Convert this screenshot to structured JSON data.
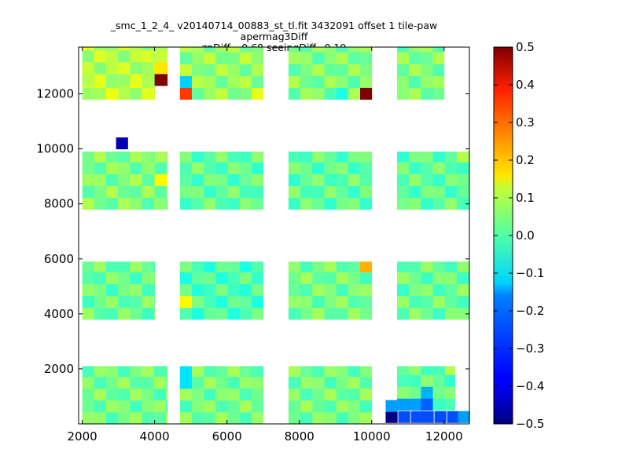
{
  "chart_data": {
    "type": "heatmap",
    "title": "_smc_1_2_4_ v20140714_00883_st_tl.fit 3432091 offset 1 tile-paw apermag3Diff",
    "subtitle": "zpDiff= 0.68 seeingDiff=0.19",
    "xlabel": "",
    "ylabel": "",
    "xlim": [
      1900,
      12700
    ],
    "ylim": [
      0,
      13700
    ],
    "x_ticks": [
      "2000",
      "4000",
      "6000",
      "8000",
      "10000",
      "12000"
    ],
    "y_ticks": [
      "2000",
      "4000",
      "6000",
      "8000",
      "10000",
      "12000"
    ],
    "colorbar": {
      "colormap": "jet",
      "range": [
        -0.5,
        0.5
      ],
      "ticks": [
        "0.5",
        "0.4",
        "0.3",
        "0.2",
        "0.1",
        "0.0",
        "−0.1",
        "−0.2",
        "−0.3",
        "−0.4",
        "−0.5"
      ]
    },
    "cell_size": [
      330,
      430
    ],
    "grid": false,
    "blocks": [
      {
        "x0": 2000,
        "x1": 4000,
        "y0": 12300,
        "y1": 13700,
        "base": 0.05
      },
      {
        "x0": 4000,
        "x1": 4350,
        "y0": 12300,
        "y1": 13700,
        "base": 0.05
      },
      {
        "x0": 4700,
        "x1": 7000,
        "y0": 11800,
        "y1": 13700,
        "base": 0.02
      },
      {
        "x0": 2000,
        "x1": 4000,
        "y0": 11800,
        "y1": 12300,
        "base": 0.06
      },
      {
        "x0": 7700,
        "x1": 10000,
        "y0": 11800,
        "y1": 13700,
        "base": 0.0
      },
      {
        "x0": 10700,
        "x1": 12000,
        "y0": 11800,
        "y1": 13700,
        "base": 0.0
      },
      {
        "x0": 2000,
        "x1": 4000,
        "y0": 7800,
        "y1": 9900,
        "base": 0.0
      },
      {
        "x0": 4000,
        "x1": 4350,
        "y0": 7800,
        "y1": 9900,
        "base": 0.0
      },
      {
        "x0": 4700,
        "x1": 7000,
        "y0": 7800,
        "y1": 9900,
        "base": -0.03
      },
      {
        "x0": 7700,
        "x1": 10000,
        "y0": 7800,
        "y1": 9900,
        "base": -0.03
      },
      {
        "x0": 10700,
        "x1": 12700,
        "y0": 7800,
        "y1": 9900,
        "base": -0.03
      },
      {
        "x0": 2000,
        "x1": 4000,
        "y0": 3800,
        "y1": 5900,
        "base": -0.02
      },
      {
        "x0": 4700,
        "x1": 7000,
        "y0": 3800,
        "y1": 5900,
        "base": -0.05
      },
      {
        "x0": 7700,
        "x1": 10000,
        "y0": 3800,
        "y1": 5900,
        "base": -0.01
      },
      {
        "x0": 10700,
        "x1": 12700,
        "y0": 3800,
        "y1": 5900,
        "base": -0.02
      },
      {
        "x0": 2000,
        "x1": 4350,
        "y0": 0,
        "y1": 2100,
        "base": -0.01
      },
      {
        "x0": 4700,
        "x1": 7000,
        "y0": 0,
        "y1": 2100,
        "base": -0.01
      },
      {
        "x0": 7700,
        "x1": 10000,
        "y0": 0,
        "y1": 2100,
        "base": -0.01
      },
      {
        "x0": 10700,
        "x1": 12300,
        "y0": 500,
        "y1": 2100,
        "base": -0.03
      }
    ],
    "notable_cells": [
      {
        "x": 3100,
        "y": 10200,
        "value": -0.45
      },
      {
        "x": 4200,
        "y": 12400,
        "value": 0.5
      },
      {
        "x": 4200,
        "y": 13000,
        "value": 0.15
      },
      {
        "x": 4200,
        "y": 8900,
        "value": 0.13
      },
      {
        "x": 4850,
        "y": 12000,
        "value": 0.32
      },
      {
        "x": 4850,
        "y": 12400,
        "value": -0.17
      },
      {
        "x": 4850,
        "y": 4500,
        "value": 0.13
      },
      {
        "x": 4850,
        "y": 1700,
        "value": -0.15
      },
      {
        "x": 9800,
        "y": 12000,
        "value": 0.5
      },
      {
        "x": 9800,
        "y": 5800,
        "value": 0.2
      },
      {
        "x": 10550,
        "y": 250,
        "value": -0.5
      },
      {
        "x": 10550,
        "y": 650,
        "value": -0.22
      },
      {
        "x": 10900,
        "y": 650,
        "value": -0.22
      },
      {
        "x": 11250,
        "y": 650,
        "value": -0.22
      },
      {
        "x": 11550,
        "y": 650,
        "value": -0.28
      },
      {
        "x": 10900,
        "y": 250,
        "value": -0.3
      },
      {
        "x": 11250,
        "y": 250,
        "value": -0.3
      },
      {
        "x": 11550,
        "y": 250,
        "value": -0.3
      },
      {
        "x": 11900,
        "y": 250,
        "value": -0.3
      },
      {
        "x": 12250,
        "y": 250,
        "value": -0.3
      },
      {
        "x": 12550,
        "y": 250,
        "value": -0.22
      },
      {
        "x": 11500,
        "y": 1200,
        "value": -0.2
      },
      {
        "x": 12100,
        "y": 1900,
        "value": 0.05
      },
      {
        "x": 12500,
        "y": 9800,
        "value": 0.05
      },
      {
        "x": 6700,
        "y": 12000,
        "value": 0.1
      },
      {
        "x": 9100,
        "y": 12000,
        "value": -0.1
      }
    ]
  }
}
